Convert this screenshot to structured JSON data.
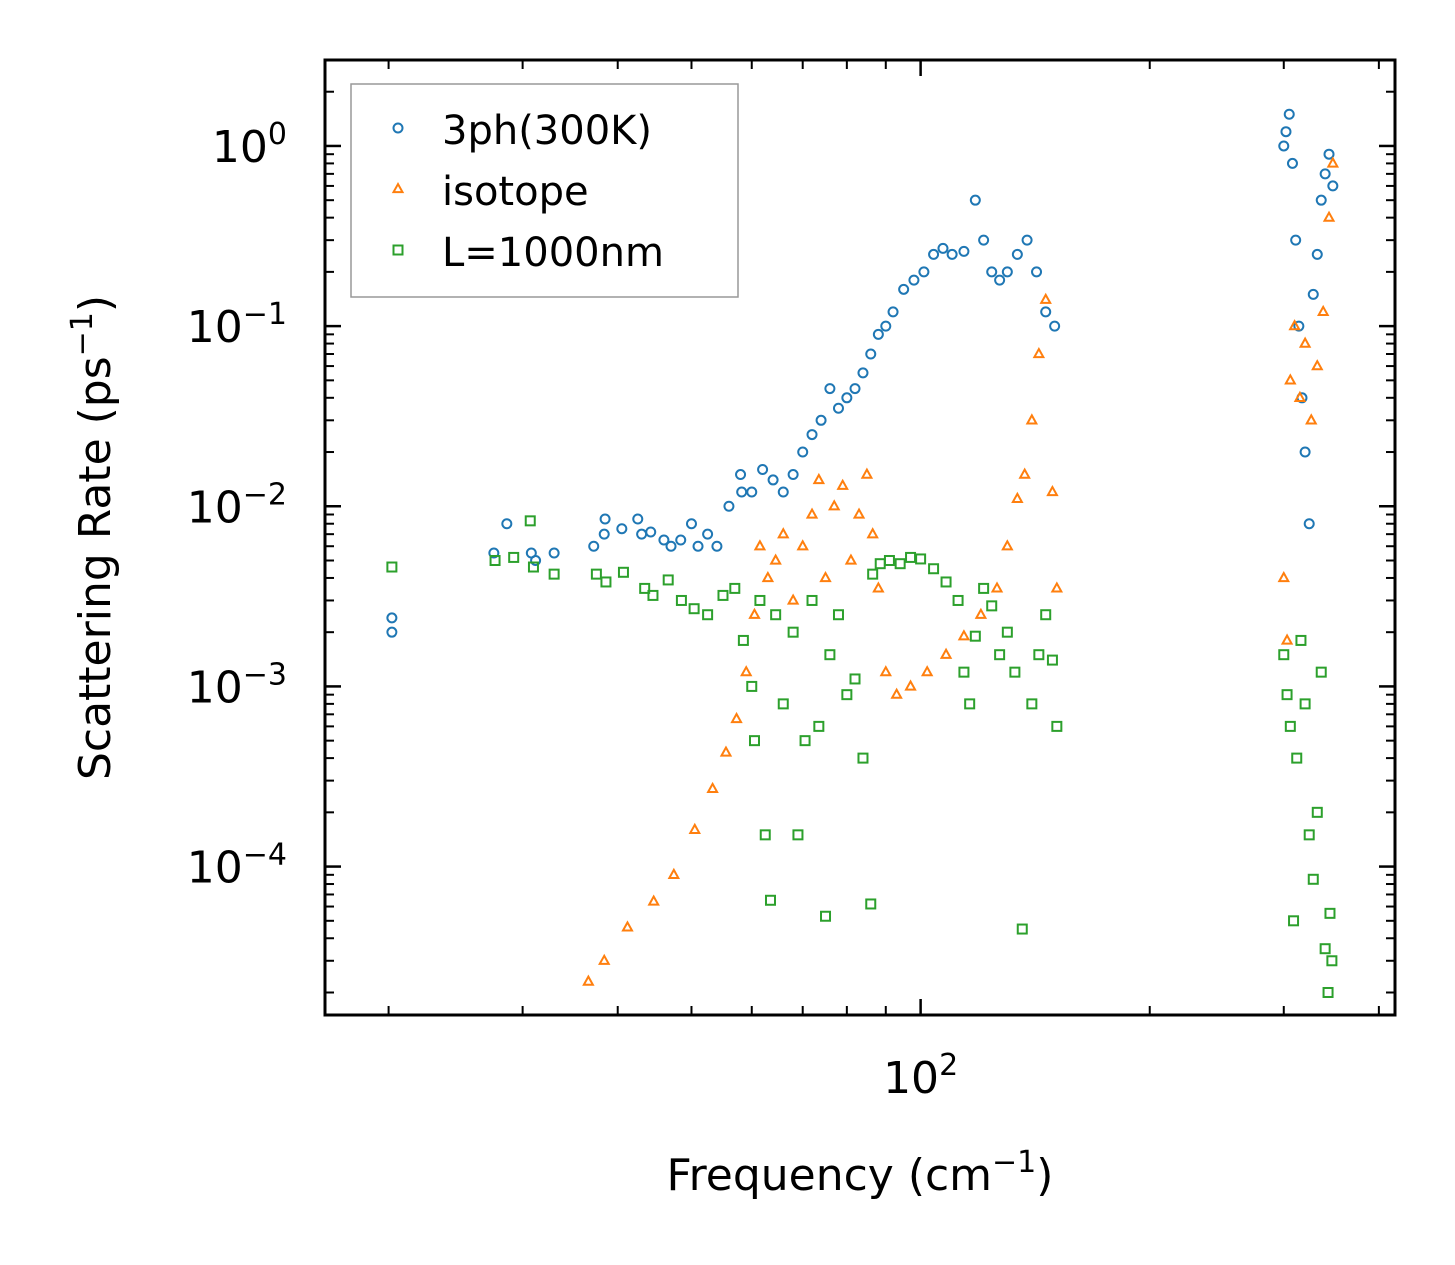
{
  "chart_data": {
    "type": "scatter",
    "xscale": "log",
    "yscale": "log",
    "xlim": [
      16.5,
      420
    ],
    "ylim": [
      1.5e-05,
      3.0
    ],
    "x_tick_label": {
      "base": "10",
      "exp": "2"
    },
    "y_tick_labels": [
      {
        "base": "10",
        "exp": "0"
      },
      {
        "base": "10",
        "exp": "−1"
      },
      {
        "base": "10",
        "exp": "−2"
      },
      {
        "base": "10",
        "exp": "−3"
      },
      {
        "base": "10",
        "exp": "−4"
      }
    ],
    "xlabel": {
      "main": "Frequency (cm",
      "sup": "−1",
      "tail": ")"
    },
    "ylabel": {
      "main": "Scattering Rate (ps",
      "sup": "−1",
      "tail": ")"
    },
    "legend_position": "top-left",
    "series": [
      {
        "name": "3ph(300K)",
        "marker": "circle",
        "color": "#1f77b4",
        "points": [
          [
            20.2,
            0.0024
          ],
          [
            20.2,
            0.002
          ],
          [
            27.5,
            0.0055
          ],
          [
            28.6,
            0.008
          ],
          [
            30.8,
            0.0055
          ],
          [
            31.2,
            0.005
          ],
          [
            33.0,
            0.0055
          ],
          [
            37.2,
            0.006
          ],
          [
            38.5,
            0.0085
          ],
          [
            38.4,
            0.007
          ],
          [
            40.5,
            0.0075
          ],
          [
            42.5,
            0.0085
          ],
          [
            43.0,
            0.007
          ],
          [
            44.2,
            0.0072
          ],
          [
            46.0,
            0.0065
          ],
          [
            47.0,
            0.006
          ],
          [
            48.4,
            0.0065
          ],
          [
            50.0,
            0.008
          ],
          [
            51.0,
            0.006
          ],
          [
            52.5,
            0.007
          ],
          [
            54.0,
            0.006
          ],
          [
            56.0,
            0.01
          ],
          [
            58.0,
            0.015
          ],
          [
            58.2,
            0.012
          ],
          [
            60.0,
            0.012
          ],
          [
            62.0,
            0.016
          ],
          [
            64.0,
            0.014
          ],
          [
            66.0,
            0.012
          ],
          [
            68.0,
            0.015
          ],
          [
            70.0,
            0.02
          ],
          [
            72.0,
            0.025
          ],
          [
            74.0,
            0.03
          ],
          [
            76.0,
            0.045
          ],
          [
            78.0,
            0.035
          ],
          [
            80.0,
            0.04
          ],
          [
            82.0,
            0.045
          ],
          [
            84.0,
            0.055
          ],
          [
            86.0,
            0.07
          ],
          [
            88.0,
            0.09
          ],
          [
            90.0,
            0.1
          ],
          [
            92.0,
            0.12
          ],
          [
            95.0,
            0.16
          ],
          [
            98.0,
            0.18
          ],
          [
            101.0,
            0.2
          ],
          [
            104.0,
            0.25
          ],
          [
            107.0,
            0.27
          ],
          [
            110.0,
            0.25
          ],
          [
            114.0,
            0.26
          ],
          [
            118.0,
            0.5
          ],
          [
            121.0,
            0.3
          ],
          [
            124.0,
            0.2
          ],
          [
            127.0,
            0.18
          ],
          [
            130.0,
            0.2
          ],
          [
            134.0,
            0.25
          ],
          [
            138.0,
            0.3
          ],
          [
            142.0,
            0.2
          ],
          [
            146.0,
            0.12
          ],
          [
            150.0,
            0.1
          ],
          [
            300.0,
            1.0
          ],
          [
            302.0,
            1.2
          ],
          [
            305.0,
            1.5
          ],
          [
            308.0,
            0.8
          ],
          [
            311.0,
            0.3
          ],
          [
            314.0,
            0.1
          ],
          [
            317.0,
            0.04
          ],
          [
            320.0,
            0.02
          ],
          [
            324.0,
            0.008
          ],
          [
            328.0,
            0.15
          ],
          [
            332.0,
            0.25
          ],
          [
            336.0,
            0.5
          ],
          [
            340.0,
            0.7
          ],
          [
            344.0,
            0.9
          ],
          [
            348.0,
            0.6
          ]
        ]
      },
      {
        "name": "isotope",
        "marker": "triangle",
        "color": "#ff7f0e",
        "points": [
          [
            36.6,
            2.3e-05
          ],
          [
            38.4,
            3e-05
          ],
          [
            41.2,
            4.6e-05
          ],
          [
            44.6,
            6.4e-05
          ],
          [
            47.4,
            9e-05
          ],
          [
            50.5,
            0.00016
          ],
          [
            53.3,
            0.00027
          ],
          [
            55.5,
            0.00043
          ],
          [
            57.3,
            0.00066
          ],
          [
            59.0,
            0.0012
          ],
          [
            60.5,
            0.0025
          ],
          [
            61.5,
            0.006
          ],
          [
            63.0,
            0.004
          ],
          [
            64.5,
            0.005
          ],
          [
            66.0,
            0.007
          ],
          [
            68.0,
            0.003
          ],
          [
            70.0,
            0.006
          ],
          [
            72.0,
            0.009
          ],
          [
            73.5,
            0.014
          ],
          [
            75.0,
            0.004
          ],
          [
            77.0,
            0.01
          ],
          [
            79.0,
            0.013
          ],
          [
            81.0,
            0.005
          ],
          [
            83.0,
            0.009
          ],
          [
            85.0,
            0.015
          ],
          [
            86.5,
            0.007
          ],
          [
            88.0,
            0.0035
          ],
          [
            90.0,
            0.0012
          ],
          [
            93.0,
            0.0009
          ],
          [
            97.0,
            0.001
          ],
          [
            102.0,
            0.0012
          ],
          [
            108.0,
            0.0015
          ],
          [
            114.0,
            0.0019
          ],
          [
            120.0,
            0.0025
          ],
          [
            126.0,
            0.0035
          ],
          [
            130.0,
            0.006
          ],
          [
            134.0,
            0.011
          ],
          [
            137.0,
            0.015
          ],
          [
            140.0,
            0.03
          ],
          [
            143.0,
            0.07
          ],
          [
            146.0,
            0.14
          ],
          [
            149.0,
            0.012
          ],
          [
            151.0,
            0.0035
          ],
          [
            300.0,
            0.004
          ],
          [
            303.0,
            0.0018
          ],
          [
            306.0,
            0.05
          ],
          [
            310.0,
            0.1
          ],
          [
            315.0,
            0.04
          ],
          [
            320.0,
            0.08
          ],
          [
            326.0,
            0.03
          ],
          [
            332.0,
            0.06
          ],
          [
            338.0,
            0.12
          ],
          [
            344.0,
            0.4
          ],
          [
            348.0,
            0.8
          ]
        ]
      },
      {
        "name": "L=1000nm",
        "marker": "square",
        "color": "#2ca02c",
        "points": [
          [
            20.2,
            0.0046
          ],
          [
            27.6,
            0.005
          ],
          [
            29.2,
            0.0052
          ],
          [
            30.7,
            0.0083
          ],
          [
            31.0,
            0.0046
          ],
          [
            33.0,
            0.0042
          ],
          [
            37.5,
            0.0042
          ],
          [
            38.6,
            0.0038
          ],
          [
            40.7,
            0.0043
          ],
          [
            43.4,
            0.0035
          ],
          [
            44.5,
            0.0032
          ],
          [
            46.6,
            0.0039
          ],
          [
            48.5,
            0.003
          ],
          [
            50.4,
            0.0027
          ],
          [
            52.5,
            0.0025
          ],
          [
            55.0,
            0.0032
          ],
          [
            57.0,
            0.0035
          ],
          [
            58.5,
            0.0018
          ],
          [
            60.0,
            0.001
          ],
          [
            60.5,
            0.0005
          ],
          [
            61.5,
            0.003
          ],
          [
            62.5,
            0.00015
          ],
          [
            63.5,
            6.5e-05
          ],
          [
            64.5,
            0.0025
          ],
          [
            66.0,
            0.0008
          ],
          [
            68.0,
            0.002
          ],
          [
            69.0,
            0.00015
          ],
          [
            70.5,
            0.0005
          ],
          [
            72.0,
            0.003
          ],
          [
            73.5,
            0.0006
          ],
          [
            75.0,
            5.3e-05
          ],
          [
            76.0,
            0.0015
          ],
          [
            78.0,
            0.0025
          ],
          [
            80.0,
            0.0009
          ],
          [
            82.0,
            0.0011
          ],
          [
            84.0,
            0.0004
          ],
          [
            86.0,
            6.2e-05
          ],
          [
            86.5,
            0.0042
          ],
          [
            88.5,
            0.0048
          ],
          [
            91.0,
            0.005
          ],
          [
            94.0,
            0.0048
          ],
          [
            97.0,
            0.0052
          ],
          [
            100.0,
            0.0051
          ],
          [
            104.0,
            0.0045
          ],
          [
            108.0,
            0.0038
          ],
          [
            112.0,
            0.003
          ],
          [
            114.0,
            0.0012
          ],
          [
            116.0,
            0.0008
          ],
          [
            118.0,
            0.0019
          ],
          [
            121.0,
            0.0035
          ],
          [
            124.0,
            0.0028
          ],
          [
            127.0,
            0.0015
          ],
          [
            130.0,
            0.002
          ],
          [
            133.0,
            0.0012
          ],
          [
            136.0,
            4.5e-05
          ],
          [
            140.0,
            0.0008
          ],
          [
            143.0,
            0.0015
          ],
          [
            146.0,
            0.0025
          ],
          [
            149.0,
            0.0014
          ],
          [
            151.0,
            0.0006
          ],
          [
            300.0,
            0.0015
          ],
          [
            303.0,
            0.0009
          ],
          [
            306.0,
            0.0006
          ],
          [
            309.0,
            5e-05
          ],
          [
            312.0,
            0.0004
          ],
          [
            316.0,
            0.0018
          ],
          [
            320.0,
            0.0008
          ],
          [
            324.0,
            0.00015
          ],
          [
            328.0,
            8.5e-05
          ],
          [
            332.0,
            0.0002
          ],
          [
            336.0,
            0.0012
          ],
          [
            340.0,
            3.5e-05
          ],
          [
            343.0,
            2e-05
          ],
          [
            345.0,
            5.5e-05
          ],
          [
            347.0,
            3e-05
          ]
        ]
      }
    ]
  }
}
